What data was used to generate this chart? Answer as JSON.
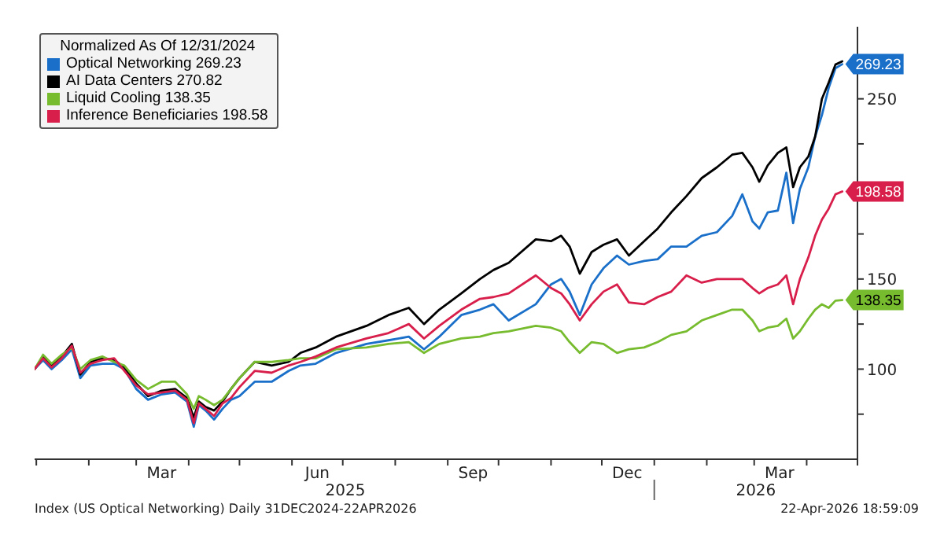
{
  "chart_data": {
    "type": "line",
    "legend_title": "Normalized As Of 12/31/2024",
    "legend": "top left",
    "annotations": [
      "2025",
      "2026",
      "Index (US Optical Networking) Daily 31DEC2024-22APR2026",
      "22-Apr-2026 18:59:09"
    ],
    "xlim": [
      "2024-12-31",
      "2026-05-01"
    ],
    "xticks": [
      {
        "value": "2025-01-01",
        "label": null
      },
      {
        "value": "2025-02-01",
        "label": null
      },
      {
        "value": "2025-03-01",
        "label": null
      },
      {
        "value": "2025-03-16",
        "label": "Mar"
      },
      {
        "value": "2025-04-01",
        "label": null
      },
      {
        "value": "2025-05-01",
        "label": null
      },
      {
        "value": "2025-06-01",
        "label": null
      },
      {
        "value": "2025-06-16",
        "label": "Jun"
      },
      {
        "value": "2025-07-01",
        "label": null
      },
      {
        "value": "2025-08-01",
        "label": null
      },
      {
        "value": "2025-09-01",
        "label": null
      },
      {
        "value": "2025-09-16",
        "label": "Sep"
      },
      {
        "value": "2025-10-01",
        "label": null
      },
      {
        "value": "2025-11-01",
        "label": null
      },
      {
        "value": "2025-12-01",
        "label": null
      },
      {
        "value": "2025-12-16",
        "label": "Dec"
      },
      {
        "value": "2026-01-01",
        "label": null
      },
      {
        "value": "2026-02-01",
        "label": null
      },
      {
        "value": "2026-03-01",
        "label": null
      },
      {
        "value": "2026-03-16",
        "label": "Mar"
      },
      {
        "value": "2026-04-01",
        "label": null
      },
      {
        "value": "2026-05-01",
        "label": null
      }
    ],
    "ylim": [
      50,
      290
    ],
    "yticks": [
      {
        "value": 75,
        "label": null
      },
      100,
      {
        "value": 125,
        "label": null
      },
      150,
      {
        "value": 175,
        "label": null
      },
      {
        "value": 200,
        "label": null
      },
      {
        "value": 225,
        "label": null
      },
      250
    ],
    "x": [
      "2024-12-31",
      "2025-01-05",
      "2025-01-10",
      "2025-01-16",
      "2025-01-22",
      "2025-01-27",
      "2025-02-02",
      "2025-02-09",
      "2025-02-16",
      "2025-02-22",
      "2025-03-01",
      "2025-03-08",
      "2025-03-16",
      "2025-03-24",
      "2025-03-31",
      "2025-04-04",
      "2025-04-07",
      "2025-04-11",
      "2025-04-16",
      "2025-04-21",
      "2025-04-26",
      "2025-05-01",
      "2025-05-10",
      "2025-05-20",
      "2025-05-30",
      "2025-06-06",
      "2025-06-15",
      "2025-06-27",
      "2025-07-15",
      "2025-07-28",
      "2025-08-09",
      "2025-08-18",
      "2025-08-27",
      "2025-09-09",
      "2025-09-20",
      "2025-09-28",
      "2025-10-07",
      "2025-10-23",
      "2025-11-01",
      "2025-11-07",
      "2025-11-12",
      "2025-11-18",
      "2025-11-25",
      "2025-12-02",
      "2025-12-10",
      "2025-12-17",
      "2025-12-26",
      "2026-01-03",
      "2026-01-11",
      "2026-01-20",
      "2026-01-29",
      "2026-02-07",
      "2026-02-16",
      "2026-02-22",
      "2026-02-28",
      "2026-03-04",
      "2026-03-09",
      "2026-03-15",
      "2026-03-20",
      "2026-03-24",
      "2026-03-28",
      "2026-04-02",
      "2026-04-06",
      "2026-04-10",
      "2026-04-14",
      "2026-04-18",
      "2026-04-22"
    ],
    "series": [
      {
        "name": "Optical Networking 269.23",
        "color": "#1a6fc9",
        "values": [
          100,
          105,
          100,
          105,
          111,
          95,
          102,
          103,
          103,
          100,
          89,
          83,
          86,
          87,
          82,
          68,
          80,
          77,
          72,
          78,
          83,
          85,
          93,
          93,
          99,
          102,
          103,
          109,
          114,
          116,
          118,
          111,
          118,
          130,
          133,
          136,
          127,
          136,
          147,
          150,
          143,
          130,
          147,
          156,
          163,
          158,
          160,
          161,
          168,
          168,
          174,
          176,
          185,
          197,
          182,
          178,
          187,
          188,
          209,
          181,
          200,
          212,
          229,
          241,
          256,
          267,
          269.23
        ],
        "value_labels": [
          null,
          null,
          null,
          null,
          null,
          null,
          null,
          null,
          null,
          null,
          null,
          null,
          null,
          null,
          null,
          null,
          null,
          null,
          null,
          null,
          null,
          null,
          null,
          null,
          null,
          null,
          null,
          null,
          null,
          null,
          null,
          null,
          null,
          null,
          null,
          null,
          null,
          null,
          null,
          null,
          null,
          null,
          null,
          null,
          null,
          null,
          null,
          null,
          null,
          null,
          null,
          null,
          null,
          null,
          null,
          null,
          null,
          null,
          null,
          null,
          null,
          null,
          null,
          null,
          null,
          null,
          "269.23"
        ]
      },
      {
        "name": "AI Data Centers 270.82",
        "color": "#000000",
        "values": [
          100,
          107,
          102,
          107,
          114,
          97,
          104,
          106,
          105,
          101,
          92,
          85,
          88,
          89,
          84,
          73,
          82,
          79,
          77,
          82,
          89,
          95,
          104,
          102,
          104,
          109,
          112,
          118,
          124,
          130,
          134,
          125,
          133,
          142,
          150,
          155,
          159,
          172,
          171,
          174,
          168,
          153,
          165,
          169,
          172,
          163,
          171,
          178,
          187,
          196,
          206,
          212,
          219,
          220,
          212,
          204,
          213,
          220,
          223,
          201,
          212,
          218,
          229,
          250,
          259,
          269,
          270.82
        ]
      },
      {
        "name": "Liquid Cooling 138.35",
        "color": "#77bb2e",
        "values": [
          100,
          108,
          103,
          108,
          112,
          100,
          105,
          107,
          104,
          102,
          94,
          89,
          93,
          93,
          86,
          78,
          85,
          83,
          80,
          83,
          89,
          95,
          104,
          104,
          105,
          106,
          106,
          111,
          112,
          114,
          115,
          109,
          114,
          117,
          118,
          120,
          121,
          124,
          123,
          121,
          115,
          109,
          115,
          114,
          109,
          111,
          112,
          115,
          119,
          121,
          127,
          130,
          133,
          133,
          127,
          121,
          123,
          124,
          128,
          117,
          121,
          128,
          133,
          136,
          134,
          138,
          138.35
        ],
        "value_labels": [
          null,
          null,
          null,
          null,
          null,
          null,
          null,
          null,
          null,
          null,
          null,
          null,
          null,
          null,
          null,
          null,
          null,
          null,
          null,
          null,
          null,
          null,
          null,
          null,
          null,
          null,
          null,
          null,
          null,
          null,
          null,
          null,
          null,
          null,
          null,
          null,
          null,
          null,
          null,
          null,
          null,
          null,
          null,
          null,
          null,
          null,
          null,
          null,
          null,
          null,
          null,
          null,
          null,
          null,
          null,
          null,
          null,
          null,
          null,
          null,
          null,
          null,
          null,
          null,
          null,
          null,
          "138.35"
        ]
      },
      {
        "name": "Inference Beneficiaries 198.58",
        "color": "#d81e4a",
        "values": [
          100,
          106,
          101,
          106,
          113,
          98,
          103,
          105,
          106,
          99,
          91,
          86,
          87,
          88,
          83,
          70,
          81,
          78,
          74,
          81,
          84,
          90,
          99,
          98,
          102,
          104,
          107,
          112,
          117,
          120,
          125,
          117,
          124,
          133,
          139,
          140,
          142,
          152,
          145,
          142,
          136,
          127,
          136,
          143,
          147,
          137,
          136,
          140,
          143,
          152,
          148,
          150,
          150,
          150,
          145,
          142,
          145,
          147,
          152,
          136,
          150,
          162,
          174,
          183,
          189,
          197,
          198.58
        ],
        "value_labels": [
          null,
          null,
          null,
          null,
          null,
          null,
          null,
          null,
          null,
          null,
          null,
          null,
          null,
          null,
          null,
          null,
          null,
          null,
          null,
          null,
          null,
          null,
          null,
          null,
          null,
          null,
          null,
          null,
          null,
          null,
          null,
          null,
          null,
          null,
          null,
          null,
          null,
          null,
          null,
          null,
          null,
          null,
          null,
          null,
          null,
          null,
          null,
          null,
          null,
          null,
          null,
          null,
          null,
          null,
          null,
          null,
          null,
          null,
          null,
          null,
          null,
          null,
          null,
          null,
          null,
          null,
          "198.58"
        ]
      }
    ]
  }
}
